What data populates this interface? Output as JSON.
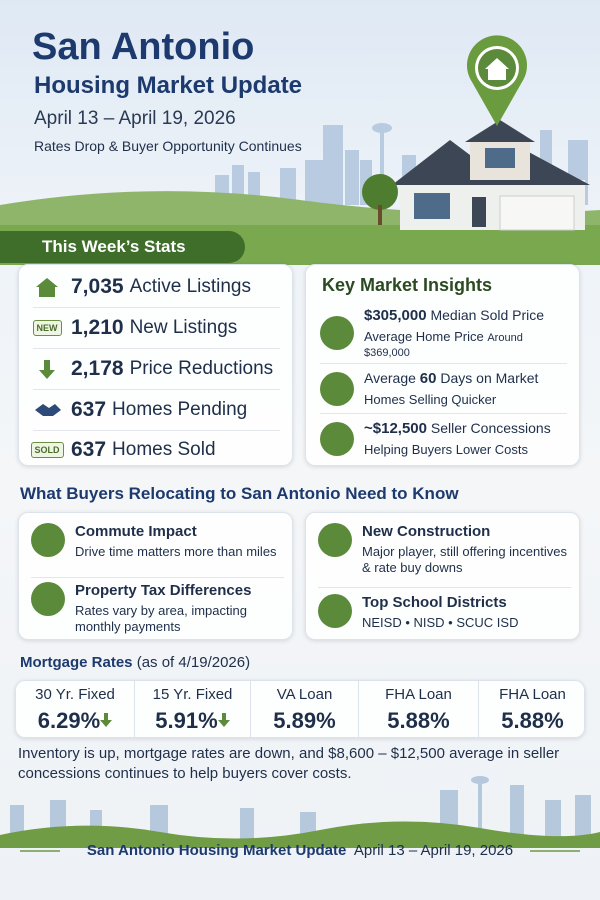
{
  "header": {
    "title": "San Antonio",
    "subtitle": "Housing Market Update",
    "dates": "April 13 – April 19, 2026",
    "tagline": "Rates Drop & Buyer Opportunity Continues"
  },
  "stats": {
    "title": "This Week’s Stats",
    "items": [
      {
        "value": "7,035",
        "label": "Active Listings"
      },
      {
        "badge": "NEW",
        "value": "1,210",
        "label": "New Listings"
      },
      {
        "value": "2,178",
        "label": "Price Reductions"
      },
      {
        "value": "637",
        "label": "Homes Pending"
      },
      {
        "badge": "SOLD",
        "value": "637",
        "label": "Homes Sold"
      }
    ]
  },
  "insights": {
    "title": "Key Market Insights",
    "items": [
      {
        "value": "$305,000",
        "label": "Median Sold Price",
        "note": "Average Home Price",
        "note_small": "Around $369,000"
      },
      {
        "prefix": "Average",
        "value": "60",
        "label": "Days on Market",
        "note": "Homes Selling Quicker"
      },
      {
        "value": "~$12,500",
        "label": "Seller Concessions",
        "note": "Helping Buyers Lower Costs"
      }
    ]
  },
  "buyers": {
    "title": "What Buyers Relocating to San Antonio Need to Know",
    "items": [
      {
        "title": "Commute Impact",
        "text": "Drive time matters more than miles"
      },
      {
        "title": "Property Tax Differences",
        "text": "Rates vary by area, impacting monthly payments"
      },
      {
        "title": "New Construction",
        "text": "Major player, still offering incentives & rate buy downs"
      },
      {
        "title": "Top School Districts",
        "text": "NEISD • NISD • SCUC ISD"
      }
    ]
  },
  "mortgage": {
    "title": "Mortgage Rates",
    "note": "(as of 4/19/2026)",
    "rates": [
      {
        "label": "30 Yr. Fixed",
        "value": "6.29%"
      },
      {
        "label": "15 Yr. Fixed",
        "value": "5.91%"
      },
      {
        "label": "VA Loan",
        "value": "5.89%"
      },
      {
        "label": "FHA Loan",
        "value": "5.88%"
      },
      {
        "label": "FHA Loan",
        "value": "5.88%"
      }
    ]
  },
  "summary": "Inventory is up, mortgage rates are down, and $8,600 – $12,500 average in seller concessions continues to help buyers cover costs.",
  "footer": {
    "title": "San Antonio Housing Market Update",
    "dates": "April 13 – April 19, 2026"
  }
}
